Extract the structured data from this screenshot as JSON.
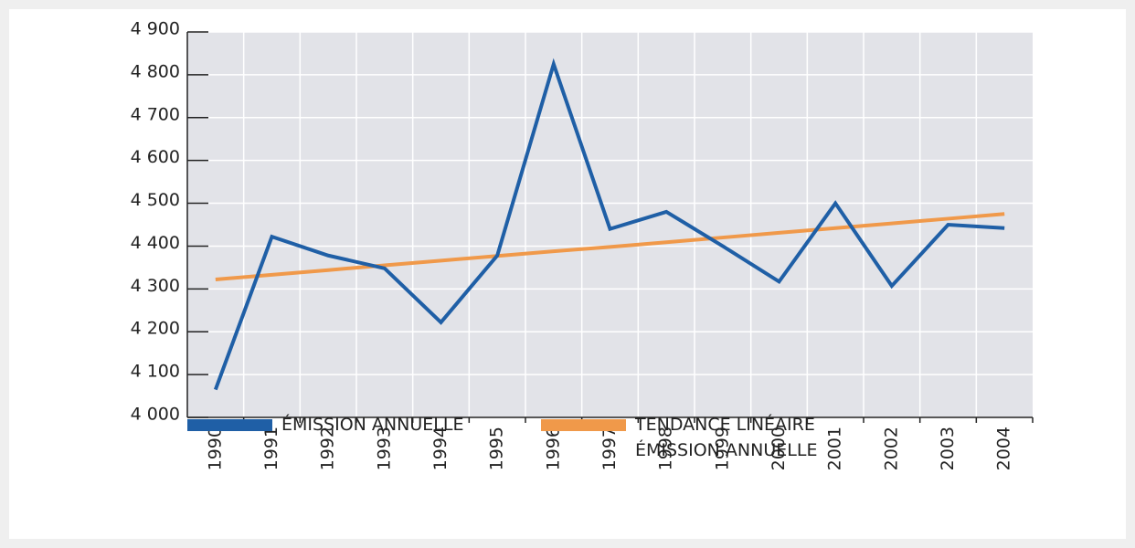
{
  "chart_data": {
    "type": "line",
    "categories": [
      "1990",
      "1991",
      "1992",
      "1993",
      "1994",
      "1995",
      "1996",
      "1997",
      "1998",
      "1999",
      "2000",
      "2001",
      "2002",
      "2003",
      "2004"
    ],
    "series": [
      {
        "name": "ÉMISSION ANNUELLE",
        "color": "#1f5fa6",
        "values": [
          4065,
          4422,
          4378,
          4348,
          4222,
          4378,
          4825,
          4440,
          4480,
          4400,
          4317,
          4500,
          4307,
          4450,
          4442
        ]
      },
      {
        "name": "TENDANCE LINÉAIRE ÉMISSION ANNUELLE",
        "color": "#f0994a",
        "values": [
          4322,
          4333,
          4344,
          4355,
          4366,
          4377,
          4388,
          4398,
          4409,
          4420,
          4431,
          4442,
          4453,
          4464,
          4475
        ]
      }
    ],
    "ylim": [
      4000,
      4900
    ],
    "yticks": [
      {
        "value": 4000,
        "label": "4 000"
      },
      {
        "value": 4100,
        "label": "4 100"
      },
      {
        "value": 4200,
        "label": "4 200"
      },
      {
        "value": 4300,
        "label": "4 300"
      },
      {
        "value": 4400,
        "label": "4 400"
      },
      {
        "value": 4500,
        "label": "4 500"
      },
      {
        "value": 4600,
        "label": "4 600"
      },
      {
        "value": 4700,
        "label": "4 700"
      },
      {
        "value": 4800,
        "label": "4 800"
      },
      {
        "value": 4900,
        "label": "4 900"
      }
    ],
    "grid": true
  }
}
